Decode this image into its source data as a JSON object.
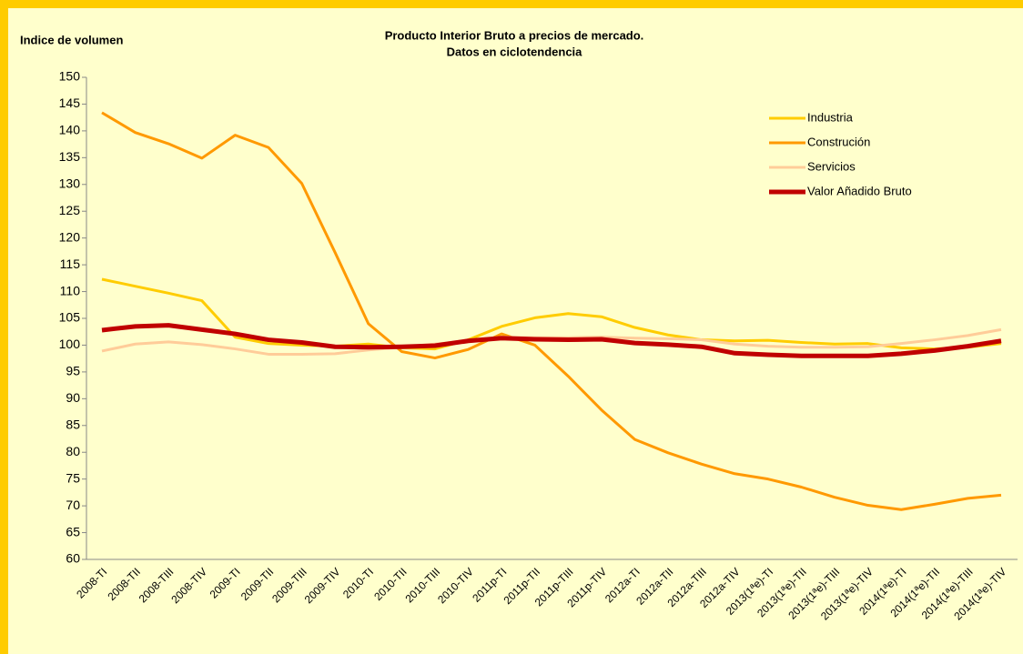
{
  "chart_data": {
    "type": "line",
    "title": "Producto Interior Bruto a precios de mercado.",
    "subtitle": "Datos en ciclotendencia",
    "y_label": "Indice de volumen",
    "categories": [
      "2008-TI",
      "2008-TII",
      "2008-TIII",
      "2008-TIV",
      "2009-TI",
      "2009-TII",
      "2009-TIII",
      "2009-TIV",
      "2010-TI",
      "2010-TII",
      "2010-TIII",
      "2010-TIV",
      "2011p-TI",
      "2011p-TII",
      "2011p-TIII",
      "2011p-TIV",
      "2012a-TI",
      "2012a-TII",
      "2012a-TIII",
      "2012a-TIV",
      "2013(1ªe)-TI",
      "2013(1ªe)-TII",
      "2013(1ªe)-TIII",
      "2013(1ªe)-TIV",
      "2014(1ªe)-TI",
      "2014(1ªe)-TII",
      "2014(1ªe)-TIII",
      "2014(1ªe)-TIV"
    ],
    "series": [
      {
        "name": "Industria",
        "color": "#FFCC00",
        "values": [
          112.3,
          111,
          109.7,
          108.3,
          101.5,
          100.3,
          100,
          99.8,
          100.2,
          99.5,
          99.3,
          101,
          103.5,
          105.1,
          105.9,
          105.3,
          103.3,
          101.9,
          101,
          100.8,
          100.9,
          100.5,
          100.2,
          100.3,
          99.5,
          99.3,
          99.6,
          100.3
        ]
      },
      {
        "name": "Construción",
        "color": "#FF9900",
        "values": [
          143.4,
          139.7,
          137.6,
          134.9,
          139.2,
          136.9,
          130.2,
          117.3,
          104,
          98.8,
          97.6,
          99.2,
          102.1,
          100,
          94.2,
          87.9,
          82.4,
          79.9,
          77.8,
          76,
          75,
          73.5,
          71.6,
          70.1,
          69.3,
          70.3,
          71.4,
          72
        ]
      },
      {
        "name": "Servicios",
        "color": "#FFCC99",
        "values": [
          98.9,
          100.2,
          100.6,
          100.1,
          99.3,
          98.3,
          98.3,
          98.4,
          99.1,
          99.6,
          100.2,
          100.8,
          101.5,
          101.4,
          101.4,
          101.5,
          101.3,
          101.2,
          101,
          100.2,
          99.8,
          99.6,
          99.6,
          99.7,
          100.3,
          101,
          101.8,
          102.9
        ]
      },
      {
        "name": "Valor Añadido Bruto",
        "color": "#C00000",
        "values": [
          102.8,
          103.5,
          103.7,
          102.9,
          102.1,
          101,
          100.5,
          99.7,
          99.6,
          99.7,
          99.9,
          100.8,
          101.3,
          101.1,
          101,
          101.1,
          100.4,
          100.1,
          99.7,
          98.5,
          98.2,
          98,
          98,
          98,
          98.4,
          99,
          99.8,
          100.8
        ]
      }
    ],
    "ylim": [
      60,
      150
    ],
    "yticks": [
      60,
      65,
      70,
      75,
      80,
      85,
      90,
      95,
      100,
      105,
      110,
      115,
      120,
      125,
      130,
      135,
      140,
      145,
      150
    ],
    "grid": false,
    "legend": "right"
  }
}
